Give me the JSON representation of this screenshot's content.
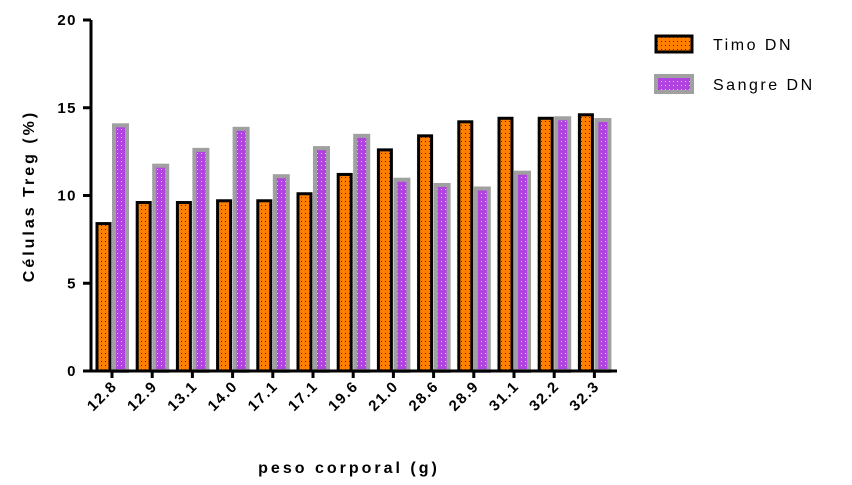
{
  "chart_data": {
    "type": "bar",
    "categories": [
      "12.8",
      "12.9",
      "13.1",
      "14.0",
      "17.1",
      "17.1",
      "19.6",
      "21.0",
      "28.6",
      "28.9",
      "31.1",
      "32.2",
      "32.3"
    ],
    "series": [
      {
        "name": "Timo DN",
        "values": [
          8.4,
          9.6,
          9.6,
          9.7,
          9.7,
          10.1,
          11.2,
          12.6,
          13.4,
          14.2,
          14.4,
          14.4,
          14.6
        ],
        "fill": "#ff7f00",
        "stroke": "#000000"
      },
      {
        "name": "Sangre DN",
        "values": [
          14.0,
          11.7,
          12.6,
          13.8,
          11.1,
          12.7,
          13.4,
          10.9,
          10.6,
          10.4,
          11.3,
          14.4,
          14.3
        ],
        "fill": "#b144e0",
        "stroke": "#a0a0a0"
      }
    ],
    "xlabel": "peso corporal (g)",
    "ylabel": "Células Treg (%)",
    "ylim": [
      0,
      20
    ],
    "yticks": [
      0,
      5,
      10,
      15,
      20
    ],
    "grid": false,
    "legend_position": "top-right"
  }
}
